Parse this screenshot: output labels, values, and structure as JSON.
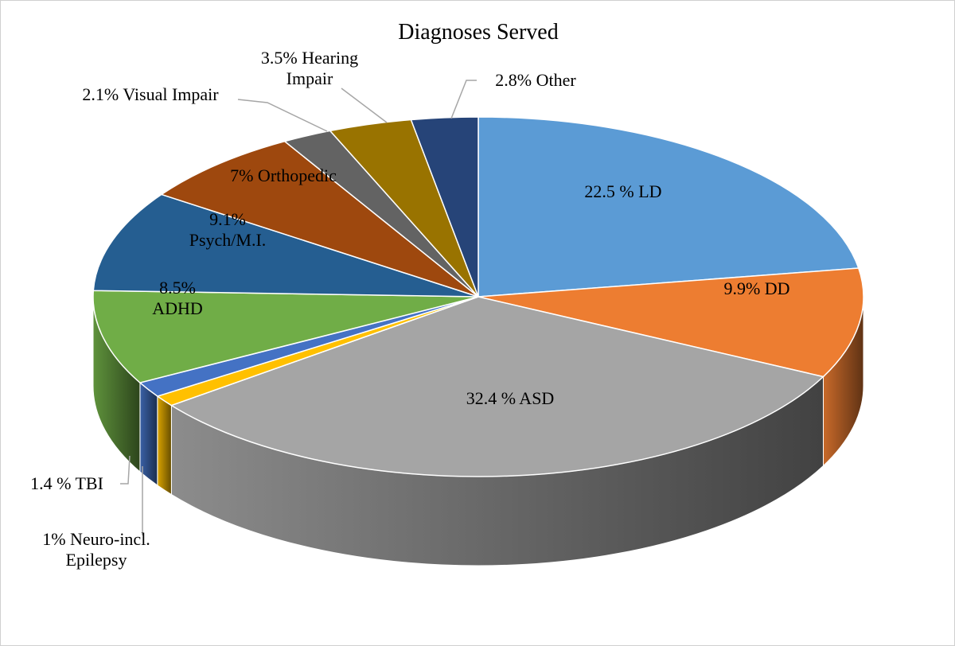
{
  "chart_data": {
    "type": "pie",
    "style": "3d",
    "title": "Diagnoses Served",
    "slices": [
      {
        "name": "LD",
        "value": 22.5,
        "label": "22.5 % LD",
        "color": "#5B9BD5"
      },
      {
        "name": "DD",
        "value": 9.9,
        "label": "9.9% DD",
        "color": "#ED7D31"
      },
      {
        "name": "ASD",
        "value": 32.4,
        "label": "32.4 % ASD",
        "color": "#A5A5A5"
      },
      {
        "name": "Neuro-incl. Epilepsy",
        "value": 1.0,
        "label": "1% Neuro-incl. Epilepsy",
        "color": "#FFC000"
      },
      {
        "name": "TBI",
        "value": 1.4,
        "label": "1.4 % TBI",
        "color": "#4472C4"
      },
      {
        "name": "ADHD",
        "value": 8.5,
        "label": "8.5% ADHD",
        "color": "#70AD47"
      },
      {
        "name": "Psych/M.I.",
        "value": 9.1,
        "label": "9.1% Psych/M.I.",
        "color": "#255E91"
      },
      {
        "name": "Orthopedic",
        "value": 7.0,
        "label": "7% Orthopedic",
        "color": "#9E480E"
      },
      {
        "name": "Visual Impair",
        "value": 2.1,
        "label": "2.1% Visual Impair",
        "color": "#636363"
      },
      {
        "name": "Hearing Impair",
        "value": 3.5,
        "label": "3.5% Hearing Impair",
        "color": "#997300"
      },
      {
        "name": "Other",
        "value": 2.8,
        "label": "2.8% Other",
        "color": "#264478"
      }
    ],
    "label_lines": {
      "LD": [
        "22.5 % LD"
      ],
      "DD": [
        "9.9% DD"
      ],
      "ASD": [
        "32.4 % ASD"
      ],
      "Neuro": [
        "1% Neuro-incl.",
        "Epilepsy"
      ],
      "TBI": [
        "1.4 % TBI"
      ],
      "ADHD": [
        "8.5%",
        "ADHD"
      ],
      "Psych": [
        "9.1%",
        "Psych/M.I."
      ],
      "Ortho": [
        "7% Orthopedic"
      ],
      "Visual": [
        "2.1% Visual Impair"
      ],
      "Hearing": [
        "3.5% Hearing",
        "Impair"
      ],
      "Other": [
        "2.8% Other"
      ]
    }
  }
}
